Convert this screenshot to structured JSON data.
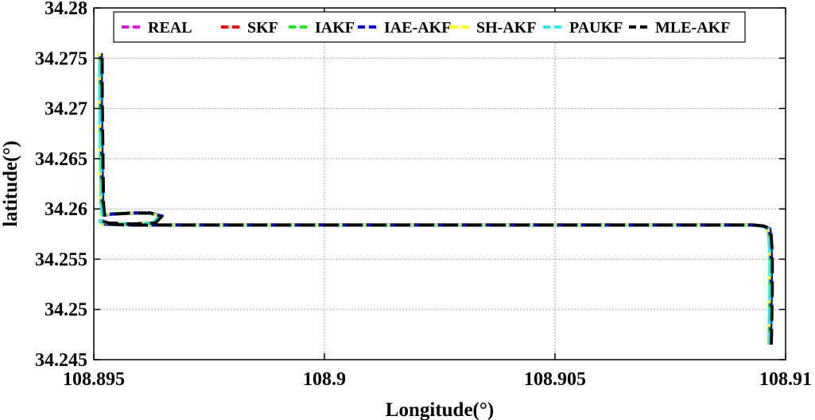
{
  "chart_data": {
    "type": "line",
    "title": "",
    "xlabel": "Longitude(°)",
    "ylabel": "latitude(°)",
    "xlim": [
      108.895,
      108.91
    ],
    "ylim": [
      34.245,
      34.28
    ],
    "xticks": [
      108.895,
      108.9,
      108.905,
      108.91
    ],
    "xtick_labels": [
      "108.895",
      "108.9",
      "108.905",
      "108.91"
    ],
    "yticks": [
      34.245,
      34.25,
      34.255,
      34.26,
      34.265,
      34.27,
      34.275,
      34.28
    ],
    "ytick_labels": [
      "34.245",
      "34.25",
      "34.255",
      "34.26",
      "34.265",
      "34.27",
      "34.275",
      "34.28"
    ],
    "grid": true,
    "legend_position": "top-right",
    "trajectory": {
      "x": [
        108.89515,
        108.89515,
        108.89516,
        108.89517,
        108.89518,
        108.8952,
        108.8954,
        108.8958,
        108.8962,
        108.89645,
        108.8963,
        108.8958,
        108.8953,
        108.89515,
        108.8952,
        108.8958,
        108.897,
        108.899,
        108.901,
        108.903,
        108.905,
        108.907,
        108.909,
        108.9093,
        108.9095,
        108.90965,
        108.90968,
        108.90968,
        108.90967,
        108.90966
      ],
      "y": [
        34.2755,
        34.272,
        34.268,
        34.264,
        34.2605,
        34.2594,
        34.2595,
        34.2596,
        34.2596,
        34.2593,
        34.2586,
        34.2585,
        34.2586,
        34.2588,
        34.2585,
        34.2584,
        34.2584,
        34.2584,
        34.2584,
        34.2584,
        34.2584,
        34.2584,
        34.2584,
        34.2584,
        34.2583,
        34.258,
        34.2555,
        34.252,
        34.249,
        34.2465
      ]
    },
    "series": [
      {
        "name": "REAL",
        "color": "#ff00ff",
        "dash": "20 10",
        "width": 4,
        "offset": [
          0.0,
          0.0
        ]
      },
      {
        "name": "SKF",
        "color": "#ff0000",
        "dash": "20 10",
        "width": 4,
        "offset": [
          0.0,
          0.0
        ]
      },
      {
        "name": "IAKF",
        "color": "#00ff00",
        "dash": "20 10",
        "width": 4,
        "offset": [
          -2e-05,
          0.0
        ]
      },
      {
        "name": "IAE-AKF",
        "color": "#0000ff",
        "dash": "20 10",
        "width": 4,
        "offset": [
          1e-05,
          0.0
        ]
      },
      {
        "name": "SH-AKF",
        "color": "#ffff00",
        "dash": "20 10",
        "width": 4,
        "offset": [
          -3e-05,
          1e-05
        ]
      },
      {
        "name": "PAUKF",
        "color": "#00ffff",
        "dash": "20 10",
        "width": 4,
        "offset": [
          -2e-05,
          0.0
        ]
      },
      {
        "name": "MLE-AKF",
        "color": "#000000",
        "dash": "20 10",
        "width": 4,
        "offset": [
          3e-05,
          -1e-05
        ]
      }
    ]
  }
}
